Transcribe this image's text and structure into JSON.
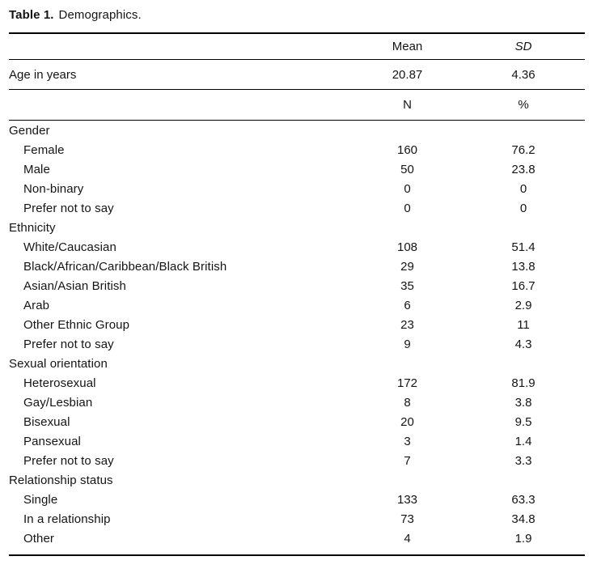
{
  "caption": {
    "label": "Table 1.",
    "title": "Demographics."
  },
  "header_stats": {
    "mean": "Mean",
    "sd": "SD"
  },
  "age_row": {
    "label": "Age in years",
    "mean": "20.87",
    "sd": "4.36"
  },
  "header_counts": {
    "n": "N",
    "pct": "%"
  },
  "rows": [
    {
      "label": "Gender",
      "n": "",
      "pct": "",
      "indent": false
    },
    {
      "label": "Female",
      "n": "160",
      "pct": "76.2",
      "indent": true
    },
    {
      "label": "Male",
      "n": "50",
      "pct": "23.8",
      "indent": true
    },
    {
      "label": "Non-binary",
      "n": "0",
      "pct": "0",
      "indent": true
    },
    {
      "label": "Prefer not to say",
      "n": "0",
      "pct": "0",
      "indent": true
    },
    {
      "label": "Ethnicity",
      "n": "",
      "pct": "",
      "indent": false
    },
    {
      "label": "White/Caucasian",
      "n": "108",
      "pct": "51.4",
      "indent": true
    },
    {
      "label": "Black/African/Caribbean/Black British",
      "n": "29",
      "pct": "13.8",
      "indent": true
    },
    {
      "label": "Asian/Asian British",
      "n": "35",
      "pct": "16.7",
      "indent": true
    },
    {
      "label": "Arab",
      "n": "6",
      "pct": "2.9",
      "indent": true
    },
    {
      "label": "Other Ethnic Group",
      "n": "23",
      "pct": "11",
      "indent": true
    },
    {
      "label": "Prefer not to say",
      "n": "9",
      "pct": "4.3",
      "indent": true
    },
    {
      "label": "Sexual orientation",
      "n": "",
      "pct": "",
      "indent": false
    },
    {
      "label": "Heterosexual",
      "n": "172",
      "pct": "81.9",
      "indent": true
    },
    {
      "label": "Gay/Lesbian",
      "n": "8",
      "pct": "3.8",
      "indent": true
    },
    {
      "label": "Bisexual",
      "n": "20",
      "pct": "9.5",
      "indent": true
    },
    {
      "label": "Pansexual",
      "n": "3",
      "pct": "1.4",
      "indent": true
    },
    {
      "label": "Prefer not to say",
      "n": "7",
      "pct": "3.3",
      "indent": true
    },
    {
      "label": "Relationship status",
      "n": "",
      "pct": "",
      "indent": false
    },
    {
      "label": "Single",
      "n": "133",
      "pct": "63.3",
      "indent": true
    },
    {
      "label": "In a relationship",
      "n": "73",
      "pct": "34.8",
      "indent": true
    },
    {
      "label": "Other",
      "n": "4",
      "pct": "1.9",
      "indent": true
    }
  ],
  "colors": {
    "text": "#141414",
    "background": "#ffffff",
    "rule": "#000000"
  }
}
